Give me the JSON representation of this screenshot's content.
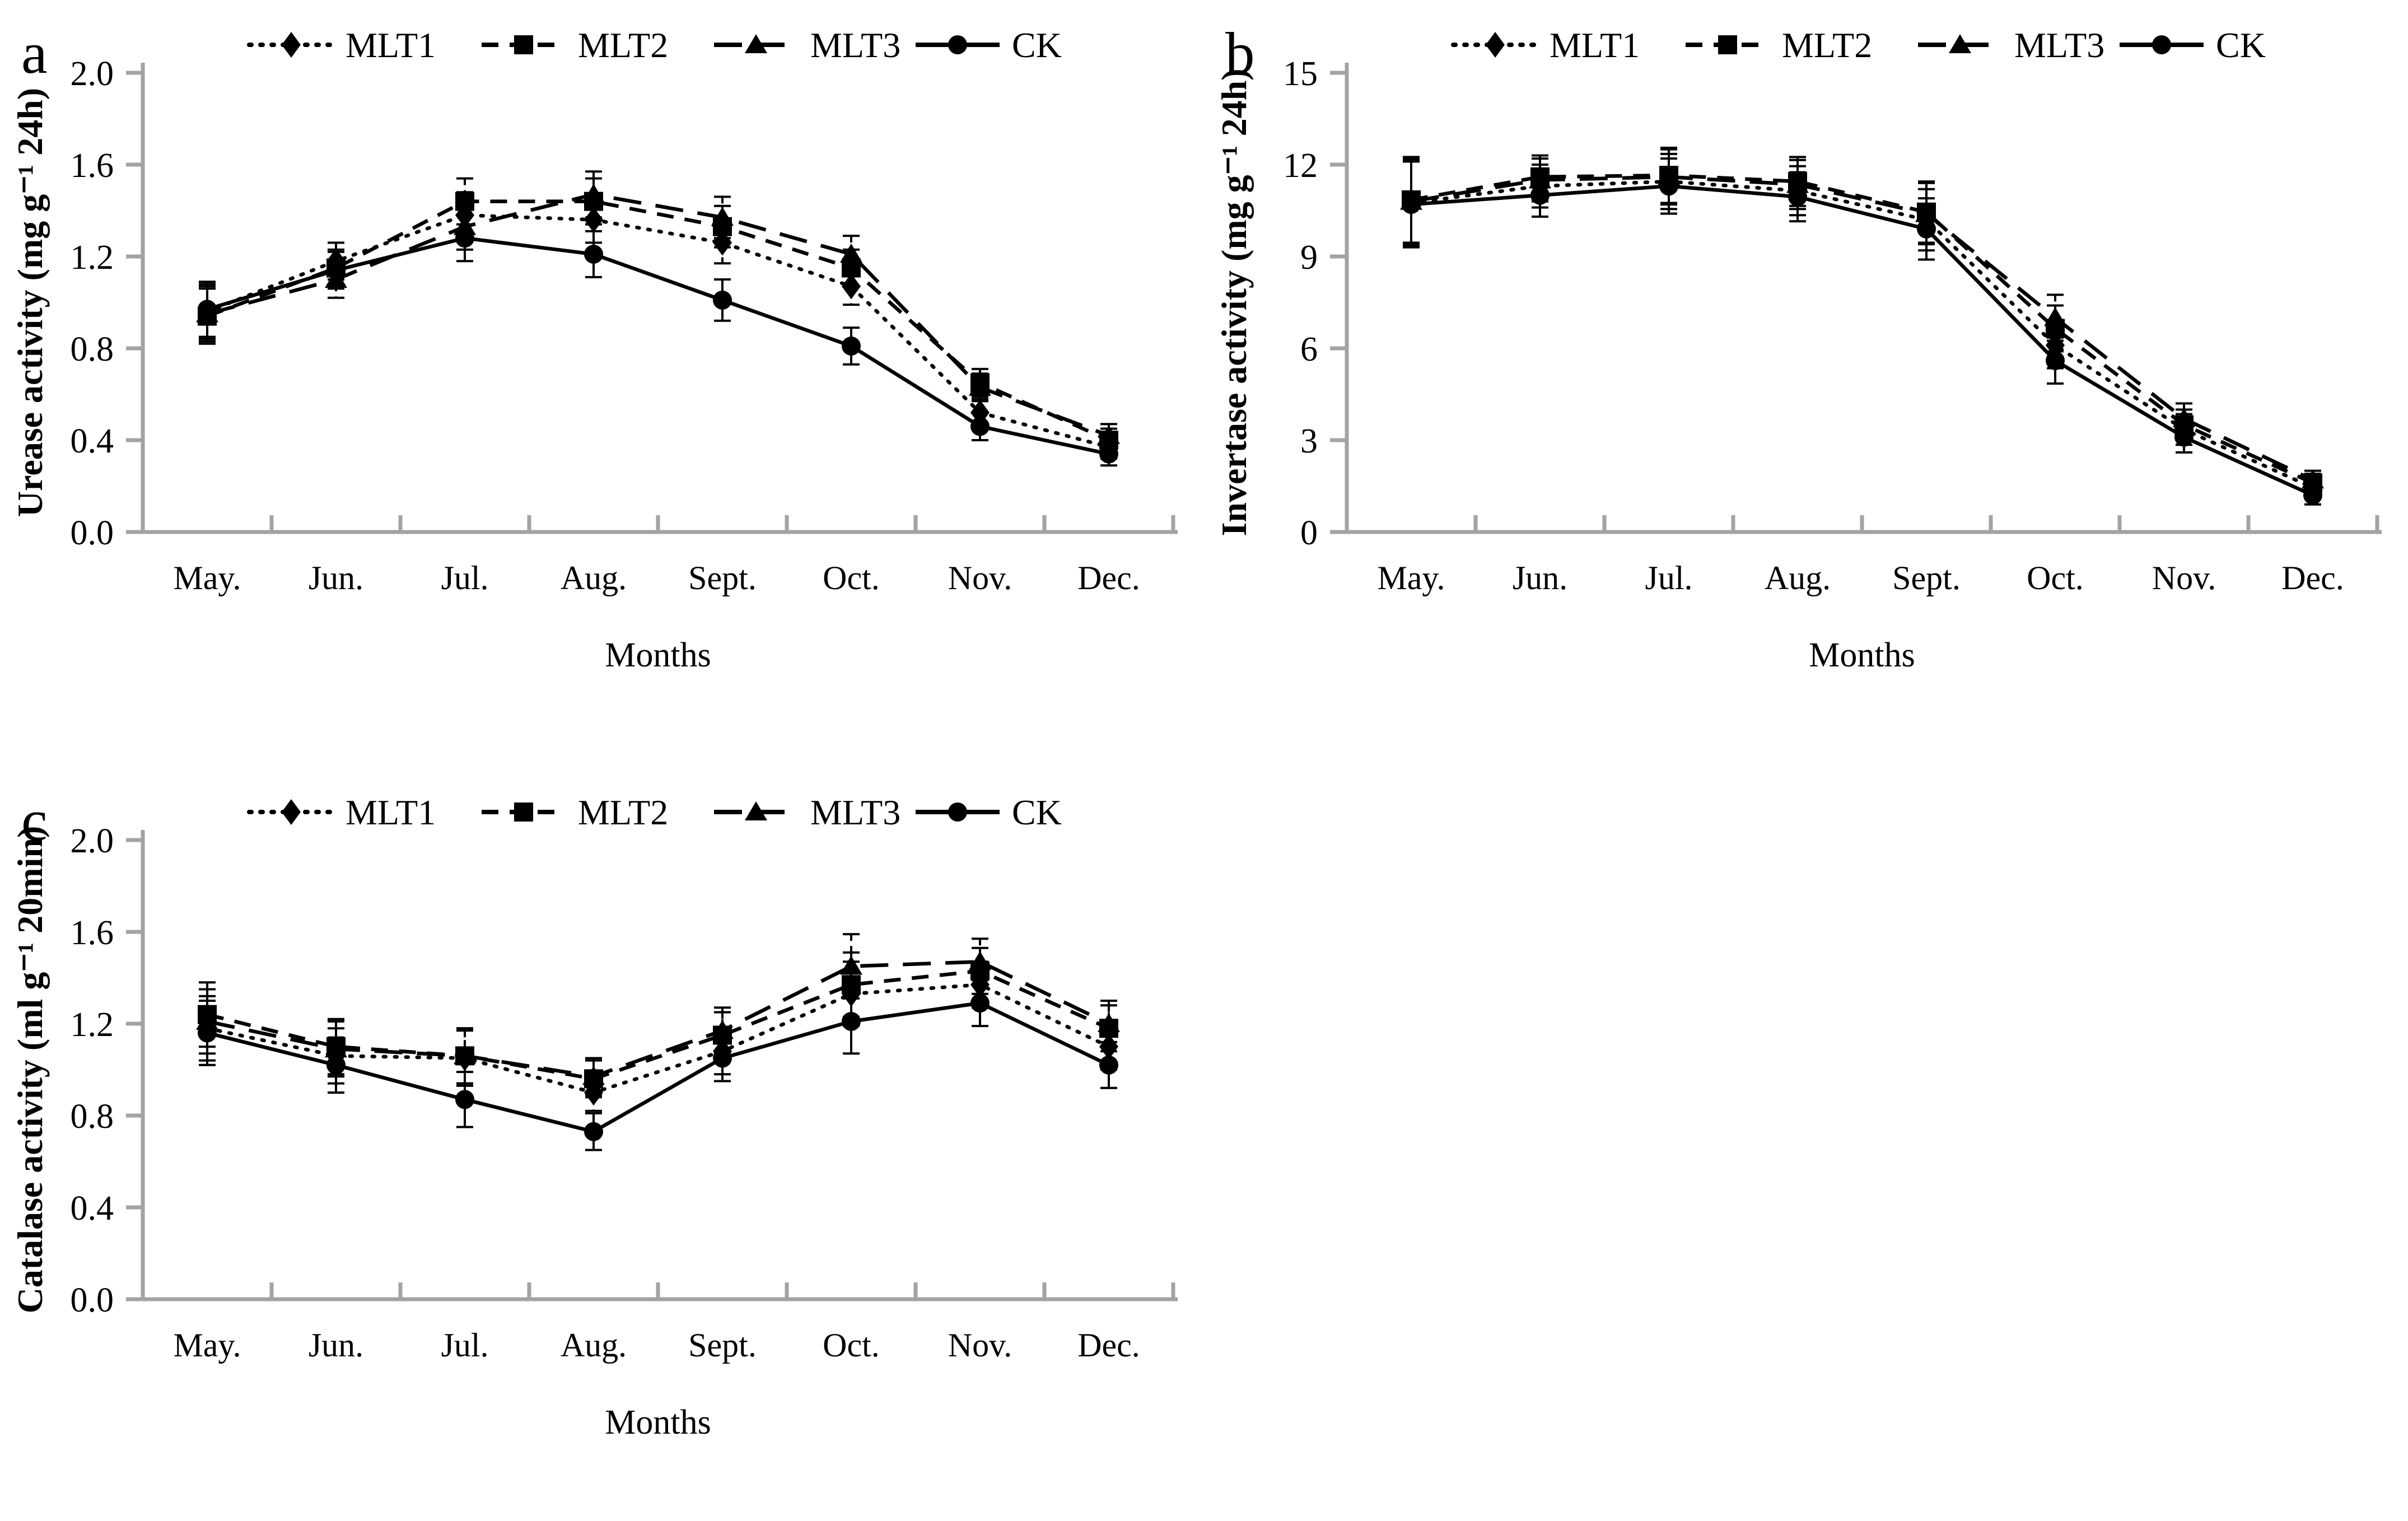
{
  "figure": {
    "background": "#ffffff",
    "axis_color": "#a3a3a3",
    "data_color": "#000000",
    "x_axis_title": "Months",
    "months": [
      "May.",
      "Jun.",
      "Jul.",
      "Aug.",
      "Sept.",
      "Oct.",
      "Nov.",
      "Dec."
    ],
    "legend_labels": [
      "MLT1",
      "MLT2",
      "MLT3",
      "CK"
    ]
  },
  "chart_data": [
    {
      "id": "a",
      "type": "line",
      "panel_label": "a",
      "title": "",
      "xlabel": "Months",
      "ylabel": "Urease activity (mg g⁻¹ 24h)",
      "categories": [
        "May.",
        "Jun.",
        "Jul.",
        "Aug.",
        "Sept.",
        "Oct.",
        "Nov.",
        "Dec."
      ],
      "ylim": [
        0,
        2.0
      ],
      "ytick_labels": [
        "0.0",
        "0.4",
        "0.8",
        "1.2",
        "1.6",
        "2.0"
      ],
      "grid": false,
      "legend_position": "top",
      "error_bars": [
        0.12,
        0.08,
        0.1,
        0.1,
        0.09,
        0.08,
        0.06,
        0.05
      ],
      "series": [
        {
          "name": "MLT1",
          "marker": "diamond",
          "linestyle": "dotted",
          "values": [
            0.96,
            1.18,
            1.38,
            1.36,
            1.26,
            1.07,
            0.52,
            0.37
          ]
        },
        {
          "name": "MLT2",
          "marker": "square",
          "linestyle": "dash",
          "values": [
            0.94,
            1.15,
            1.44,
            1.44,
            1.33,
            1.15,
            0.65,
            0.4
          ]
        },
        {
          "name": "MLT3",
          "marker": "triangle",
          "linestyle": "longdash",
          "values": [
            0.95,
            1.1,
            1.33,
            1.47,
            1.37,
            1.21,
            0.63,
            0.42
          ]
        },
        {
          "name": "CK",
          "marker": "circle",
          "linestyle": "solid",
          "values": [
            0.97,
            1.14,
            1.28,
            1.21,
            1.01,
            0.81,
            0.46,
            0.34
          ]
        }
      ]
    },
    {
      "id": "b",
      "type": "line",
      "panel_label": "b",
      "title": "",
      "xlabel": "Months",
      "ylabel": "Invertase activity (mg g⁻¹ 24h)",
      "categories": [
        "May.",
        "Jun.",
        "Jul.",
        "Aug.",
        "Sept.",
        "Oct.",
        "Nov.",
        "Dec."
      ],
      "ylim": [
        0,
        15
      ],
      "ytick_labels": [
        "0",
        "3",
        "6",
        "9",
        "12",
        "15"
      ],
      "grid": false,
      "legend_position": "top",
      "error_bars": [
        1.4,
        0.7,
        0.9,
        0.8,
        1.0,
        0.75,
        0.5,
        0.3
      ],
      "series": [
        {
          "name": "MLT1",
          "marker": "diamond",
          "linestyle": "dotted",
          "values": [
            10.75,
            11.3,
            11.45,
            11.15,
            10.2,
            6.1,
            3.35,
            1.45
          ]
        },
        {
          "name": "MLT2",
          "marker": "square",
          "linestyle": "dash",
          "values": [
            10.85,
            11.6,
            11.65,
            11.45,
            10.45,
            6.65,
            3.5,
            1.6
          ]
        },
        {
          "name": "MLT3",
          "marker": "triangle",
          "linestyle": "longdash",
          "values": [
            10.8,
            11.5,
            11.6,
            11.35,
            10.4,
            7.0,
            3.7,
            1.7
          ]
        },
        {
          "name": "CK",
          "marker": "circle",
          "linestyle": "solid",
          "values": [
            10.7,
            11.0,
            11.3,
            10.95,
            9.9,
            5.6,
            3.1,
            1.2
          ]
        }
      ]
    },
    {
      "id": "c",
      "type": "line",
      "panel_label": "c",
      "title": "",
      "xlabel": "Months",
      "ylabel": "Catalase activity (ml g⁻¹ 20min)",
      "categories": [
        "May.",
        "Jun.",
        "Jul.",
        "Aug.",
        "Sept.",
        "Oct.",
        "Nov.",
        "Dec."
      ],
      "ylim": [
        0,
        2.0
      ],
      "ytick_labels": [
        "0.0",
        "0.4",
        "0.8",
        "1.2",
        "1.6",
        "2.0"
      ],
      "grid": false,
      "legend_position": "top",
      "error_bars": [
        0.14,
        0.12,
        0.12,
        0.08,
        0.1,
        0.14,
        0.1,
        0.1
      ],
      "series": [
        {
          "name": "MLT1",
          "marker": "diamond",
          "linestyle": "dotted",
          "values": [
            1.18,
            1.06,
            1.05,
            0.9,
            1.08,
            1.33,
            1.37,
            1.1
          ]
        },
        {
          "name": "MLT2",
          "marker": "square",
          "linestyle": "dash",
          "values": [
            1.24,
            1.1,
            1.06,
            0.96,
            1.15,
            1.37,
            1.43,
            1.18
          ]
        },
        {
          "name": "MLT3",
          "marker": "triangle",
          "linestyle": "longdash",
          "values": [
            1.21,
            1.09,
            1.06,
            0.97,
            1.17,
            1.45,
            1.47,
            1.2
          ]
        },
        {
          "name": "CK",
          "marker": "circle",
          "linestyle": "solid",
          "values": [
            1.16,
            1.02,
            0.87,
            0.73,
            1.05,
            1.21,
            1.29,
            1.02
          ]
        }
      ]
    }
  ]
}
